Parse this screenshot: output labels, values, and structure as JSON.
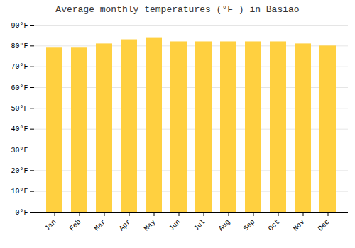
{
  "chart_data": {
    "type": "bar",
    "title": "Average monthly temperatures (°F ) in Basiao",
    "categories": [
      "Jan",
      "Feb",
      "Mar",
      "Apr",
      "May",
      "Jun",
      "Jul",
      "Aug",
      "Sep",
      "Oct",
      "Nov",
      "Dec"
    ],
    "values": [
      79,
      79,
      81,
      83,
      84,
      82,
      82,
      82,
      82,
      82,
      81,
      80
    ],
    "color": "#FFD040",
    "ylim": [
      0,
      90
    ],
    "yticks": [
      {
        "value": 0,
        "label": "0°F"
      },
      {
        "value": 10,
        "label": "10°F"
      },
      {
        "value": 20,
        "label": "20°F"
      },
      {
        "value": 30,
        "label": "30°F"
      },
      {
        "value": 40,
        "label": "40°F"
      },
      {
        "value": 50,
        "label": "50°F"
      },
      {
        "value": 60,
        "label": "60°F"
      },
      {
        "value": 70,
        "label": "70°F"
      },
      {
        "value": 80,
        "label": "80°F"
      },
      {
        "value": 90,
        "label": "90°F"
      }
    ],
    "grid": true
  }
}
